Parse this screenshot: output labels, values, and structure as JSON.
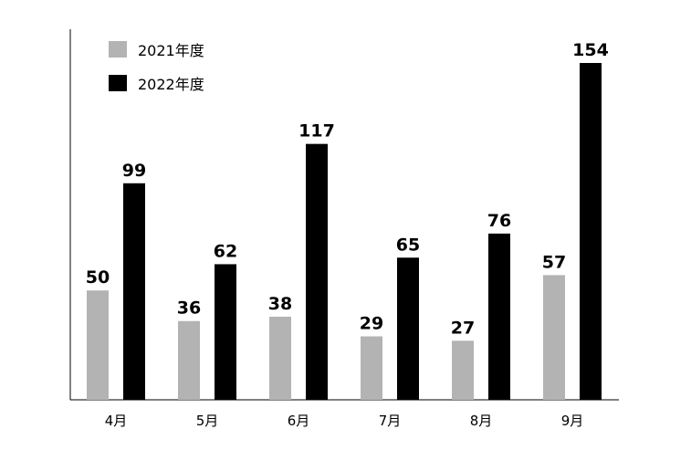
{
  "chart_data": {
    "type": "bar",
    "categories": [
      "4月",
      "5月",
      "6月",
      "7月",
      "8月",
      "9月"
    ],
    "series": [
      {
        "name": "2021年度",
        "color": "#b3b3b3",
        "values": [
          50,
          36,
          38,
          29,
          27,
          57
        ]
      },
      {
        "name": "2022年度",
        "color": "#000000",
        "values": [
          99,
          62,
          117,
          65,
          76,
          154
        ]
      }
    ],
    "title": "",
    "xlabel": "",
    "ylabel": "",
    "ylim": [
      0,
      165
    ],
    "grid": false,
    "legend_position": "top-left",
    "data_labels": true
  }
}
